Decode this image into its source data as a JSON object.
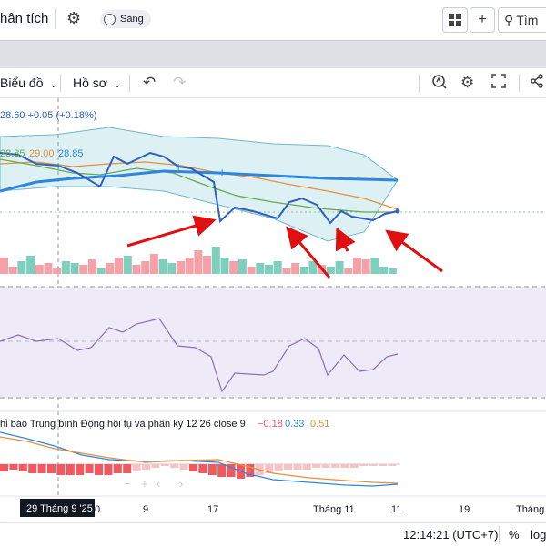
{
  "header": {
    "title": "hân tích",
    "theme_label": "Sáng",
    "search_label": "Tìm"
  },
  "toolbar": {
    "chart_menu": "Biểu đồ",
    "profile_menu": "Hồ sơ"
  },
  "legend": {
    "price_change": "28.60 +0.05 (+0.18%)",
    "ma_values": [
      "28.85",
      "29.00",
      "28.85"
    ],
    "macd_label": "hỉ báo Trung bình Động hội tụ và phân kỳ 12 26 close 9",
    "macd_values": [
      "−0.18",
      "0.33",
      "0.51"
    ]
  },
  "time_axis": {
    "labels": [
      "0",
      "9",
      "17",
      "Tháng 11",
      "11",
      "19",
      "Tháng"
    ],
    "crosshair_label": "29 Tháng 9 '25"
  },
  "status_bar": {
    "clock": "12:14:21 (UTC+7)",
    "percent": "%",
    "log": "log"
  },
  "colors": {
    "price_line": "#2f5fbf",
    "ma_orange": "#e69138",
    "ma_green": "#6aa84f",
    "ma_blue": "#2e86de",
    "band_fill": "#cfe9ef",
    "band_line": "#6fb8c9",
    "vol_up": "#7fcfbf",
    "vol_down": "#f4a1a8",
    "rsi_bg": "#efeaf8",
    "rsi_line": "#7e57c2",
    "arrow": "#e01010",
    "macd_neg_dark": "#f0595f",
    "macd_neg_light": "#f8c3c6"
  },
  "icons": [
    "gear-icon",
    "layout-grid-icon",
    "plus-icon",
    "search-icon",
    "chevron-down-icon",
    "undo-icon",
    "redo-icon",
    "alert-icon",
    "settings-icon",
    "fullscreen-icon",
    "share-icon"
  ]
}
